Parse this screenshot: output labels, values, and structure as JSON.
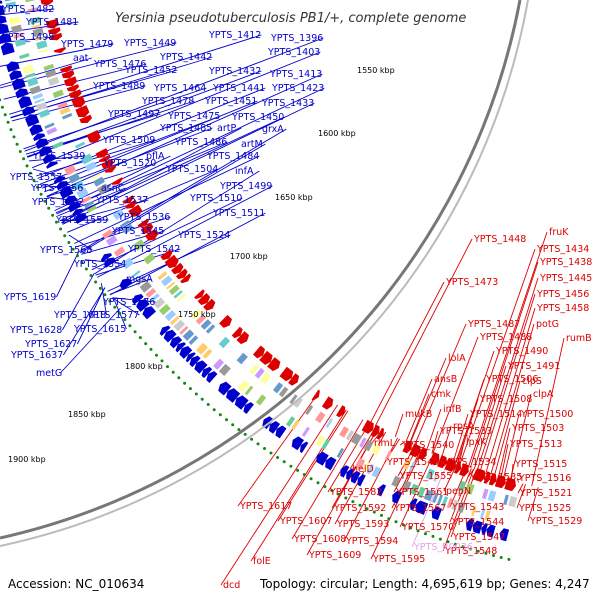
{
  "title": "Yersinia pseudotuberculosis PB1/+, complete genome",
  "footer": {
    "accession": "Accession: NC_010634",
    "stats": "Topology: circular; Length: 4,695,619 bp; Genes: 4,247"
  },
  "colors": {
    "plus_strand": "#0000cc",
    "minus_strand": "#dd0000",
    "rna": "#e6a0e6",
    "backbone": "#999999",
    "ticks": "#118811"
  },
  "kbp_ticks": [
    "1550 kbp",
    "1600 kbp",
    "1650 kbp",
    "1700 kbp",
    "1750 kbp",
    "1800 kbp",
    "1850 kbp",
    "1900 kbp"
  ],
  "plus_labels": [
    "YPTS_1482",
    "YPTS_1481",
    "YPTS_1498",
    "YPTS_1479",
    "YPTS_1449",
    "YPTS_1412",
    "YPTS_1396",
    "aat",
    "YPTS_1476",
    "YPTS_1442",
    "YPTS_1403",
    "YPTS_1452",
    "YPTS_1432",
    "YPTS_1413",
    "YPTS_1489",
    "YPTS_1464",
    "YPTS_1441",
    "YPTS_1423",
    "YPTS_1478",
    "YPTS_1451",
    "YPTS_1433",
    "YPTS_1497",
    "YPTS_1475",
    "YPTS_1450",
    "YPTS_1485",
    "artP",
    "grxA",
    "YPTS_1509",
    "YPTS_1486",
    "artM",
    "pflA",
    "YPTS_1484",
    "YPTS_1539",
    "YPTS_1520",
    "YPTS_1504",
    "infA",
    "YPTS_1557",
    "YPTS_1499",
    "YPTS_1556",
    "asnC",
    "YPTS_1510",
    "YPTS_1562",
    "YPTS_1537",
    "YPTS_1511",
    "YPTS_1536",
    "YPTS_1559",
    "YPTS_1545",
    "YPTS_1524",
    "YPTS_1568",
    "YPTS_1542",
    "YPTS_1554",
    "mgsA",
    "YPTS_1619",
    "YPTS_1576",
    "YPTS_1618",
    "YPTS_1577",
    "YPTS_1628",
    "YPTS_1615",
    "YPTS_1627",
    "YPTS_1637",
    "metG"
  ],
  "minus_labels": [
    "fruK",
    "YPTS_1448",
    "YPTS_1434",
    "YPTS_1438",
    "YPTS_1445",
    "YPTS_1473",
    "YPTS_1456",
    "YPTS_1458",
    "potG",
    "YPTS_1487",
    "rumB",
    "YPTS_1488",
    "YPTS_1490",
    "lolA",
    "YPTS_1491",
    "ansB",
    "YPTS_1506",
    "clpS",
    "cmk",
    "clpA",
    "YPTS_1508",
    "infB",
    "YPTS_1514",
    "YPTS_1500",
    "mukB",
    "rpsA",
    "YPTS_1533",
    "YPTS_1503",
    "rlmL",
    "YPTS_1540",
    "lpxK",
    "YPTS_1513",
    "YPTS_1549",
    "YPTS_1534",
    "YPTS_1515",
    "helD",
    "YPTS_1555",
    "YPTS_1535",
    "YPTS_1516",
    "pepN",
    "YPTS_1582",
    "YPTS_1561",
    "YPTS_1521",
    "YPTS_1543",
    "YPTS_1592",
    "YPTS_1567",
    "YPTS_1525",
    "YPTS_1617",
    "YPTS_1593",
    "YPTS_1544",
    "YPTS_1529",
    "YPTS_1607",
    "YPTS_1570",
    "YPTS_1547",
    "YPTS_1608",
    "YPTS_1594",
    "YPTS_1548",
    "YPTS_1609",
    "YPTS_1595",
    "folE",
    "dcd"
  ],
  "rna_labels": [
    "YPTS_R0036"
  ]
}
